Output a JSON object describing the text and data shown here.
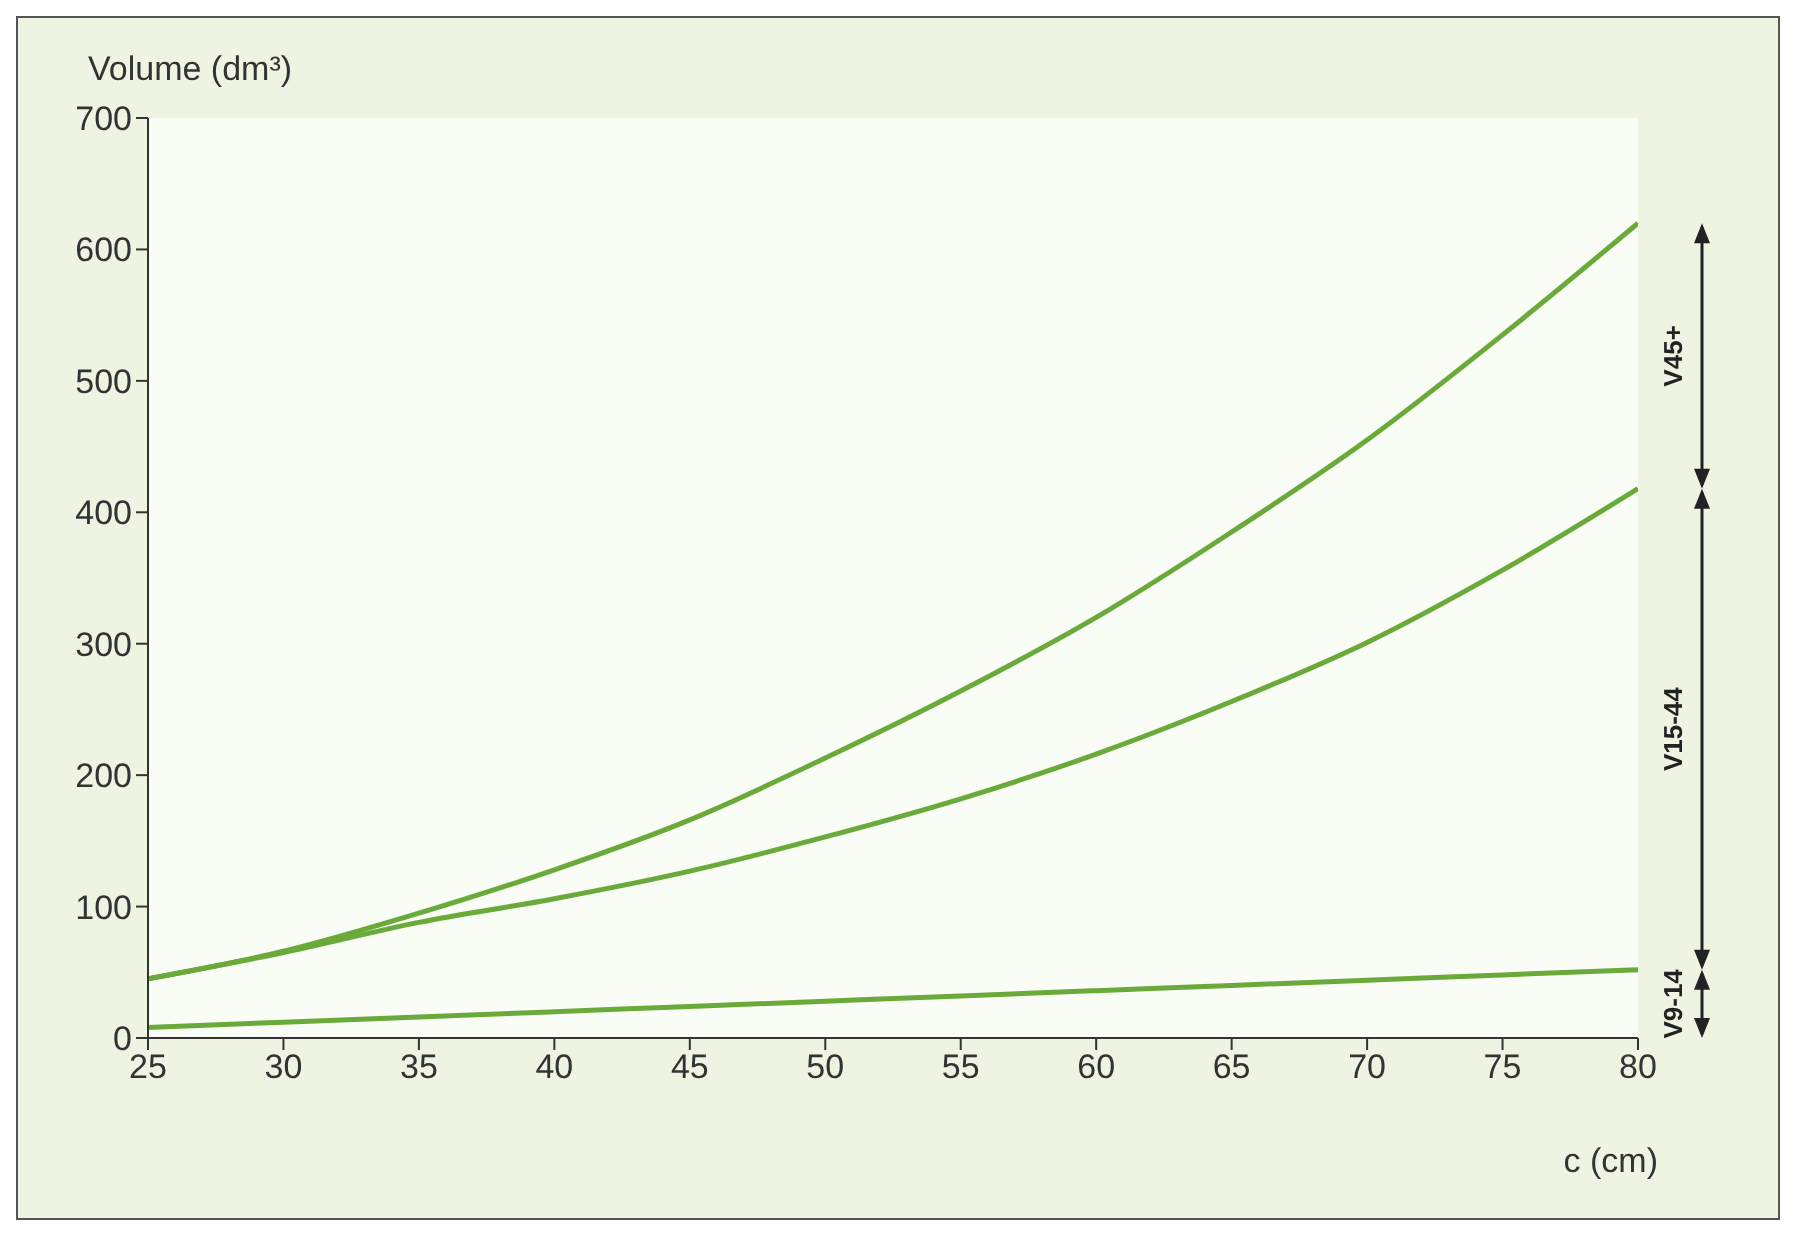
{
  "chart_data": {
    "type": "line",
    "xlabel": "c (cm)",
    "ylabel": "Volume (dm³)",
    "x": [
      25,
      30,
      35,
      40,
      45,
      50,
      55,
      60,
      65,
      70,
      75,
      80
    ],
    "series": [
      {
        "color": "#6aaa3a",
        "values": [
          8,
          12,
          16,
          20,
          24,
          28,
          32,
          36,
          40,
          44,
          48,
          52
        ]
      },
      {
        "color": "#6aaa3a",
        "values": [
          45,
          65,
          88,
          106,
          127,
          153,
          182,
          216,
          256,
          301,
          356,
          418
        ]
      },
      {
        "color": "#6aaa3a",
        "values": [
          45,
          66,
          95,
          128,
          166,
          213,
          264,
          320,
          385,
          455,
          535,
          620
        ]
      }
    ],
    "xlim": [
      25,
      80
    ],
    "xticks": [
      25,
      30,
      35,
      40,
      45,
      50,
      55,
      60,
      65,
      70,
      75,
      80
    ],
    "ylim": [
      0,
      700
    ],
    "yticks": [
      0,
      100,
      200,
      300,
      400,
      500,
      600,
      700
    ],
    "grid": false,
    "legend": false,
    "marker": "none",
    "line_style": "solid",
    "annotations": [
      "V9-14",
      "V15-44",
      "V45+"
    ]
  }
}
